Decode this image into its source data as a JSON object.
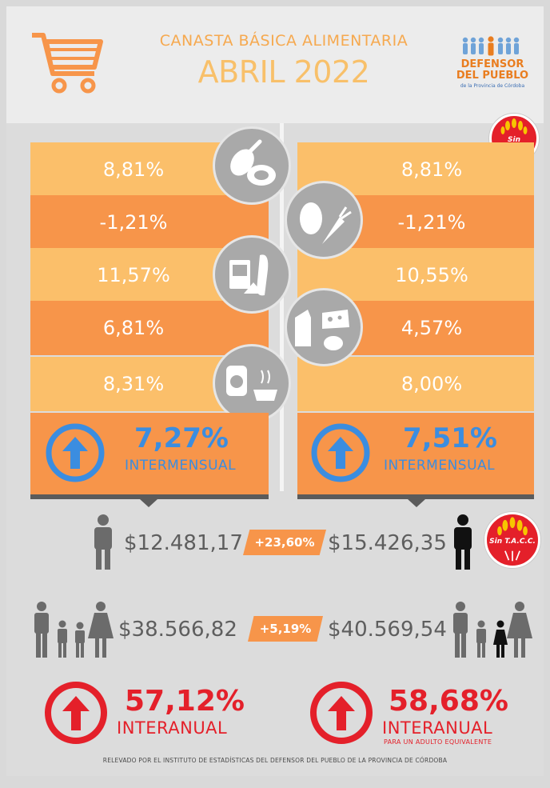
{
  "header": {
    "title": "CANASTA BÁSICA ALIMENTARIA",
    "period": "ABRIL 2022",
    "logo_line1": "DEFENSOR",
    "logo_line2": "DEL PUEBLO",
    "logo_line3": "de la Provincia de Córdoba"
  },
  "badge_label": "Sin T.A.C.C.",
  "left": {
    "rows": [
      "8,81%",
      "-1,21%",
      "11,57%",
      "6,81%",
      "8,31%"
    ],
    "summary_pct": "7,27%",
    "summary_label": "INTERMENSUAL",
    "adult_value": "$12.481,17",
    "family_value": "$38.566,82",
    "annual_pct": "57,12%",
    "annual_label": "INTERANUAL"
  },
  "right": {
    "rows": [
      "8,81%",
      "-1,21%",
      "10,55%",
      "4,57%",
      "8,00%"
    ],
    "summary_pct": "7,51%",
    "summary_label": "INTERMENSUAL",
    "adult_value": "$15.426,35",
    "family_value": "$40.569,54",
    "annual_pct": "58,68%",
    "annual_label": "INTERANUAL",
    "annual_sub": "PARA UN ADULTO EQUIVALENTE"
  },
  "diff_adult": "+23,60%",
  "diff_family": "+5,19%",
  "footer": "RELEVADO POR EL INSTITUTO DE ESTADÍSTICAS DEL DEFENSOR DEL PUEBLO DE LA PROVINCIA DE CÓRDOBA",
  "colors": {
    "orange_light": "#fbbf6a",
    "orange_dark": "#f7954a",
    "blue": "#3b8de0",
    "red": "#e4202a",
    "gray_text": "#5e5e5e"
  },
  "icons": [
    "cart-icon",
    "meat-icon",
    "vegetables-icon",
    "grains-bread-icon",
    "dairy-icon",
    "jam-tea-icon",
    "arrow-up-icon",
    "adult-icon",
    "family-icon",
    "wheat-icon"
  ]
}
